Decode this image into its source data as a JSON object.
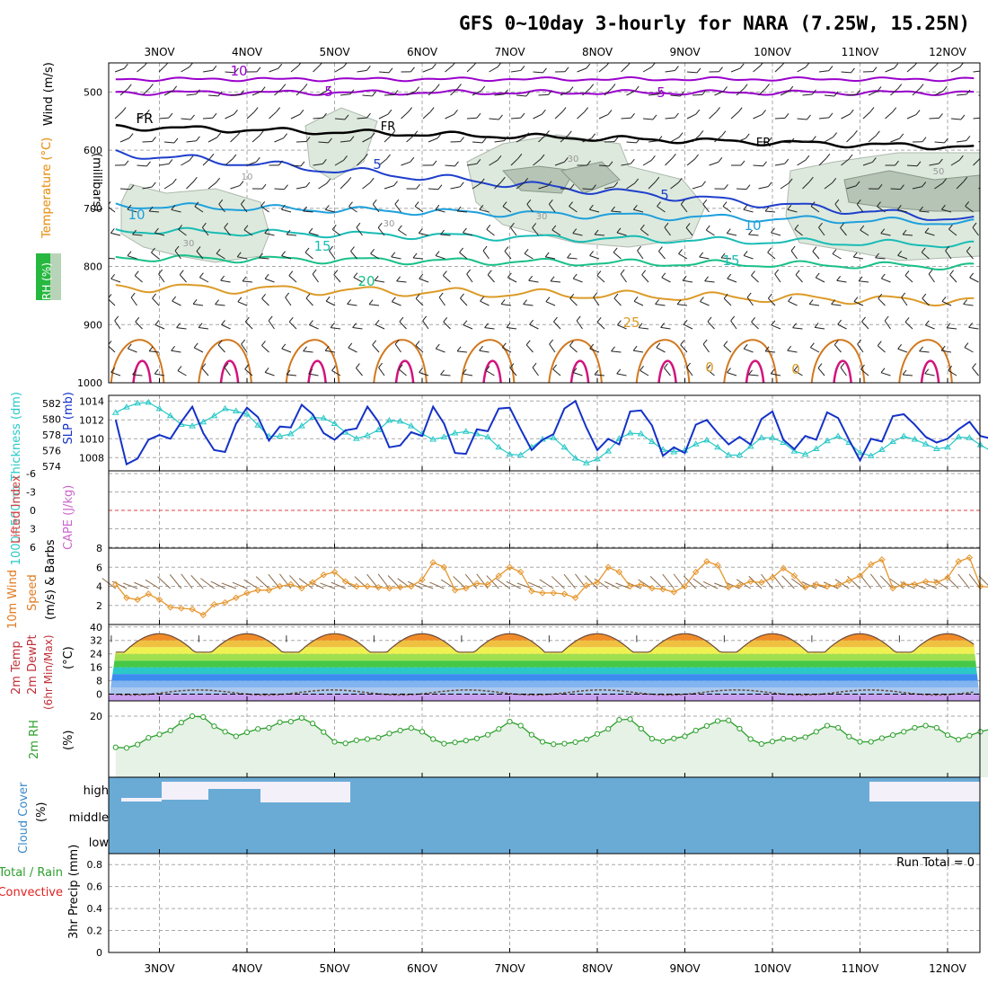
{
  "title": "GFS 0~10day 3-hourly for NARA (7.25W, 15.25N)",
  "colors": {
    "grid": "#a8a8a8",
    "frame": "#000000",
    "purple": "#9900cc",
    "blue": "#1e3fcc",
    "lightblue": "#1ea0dc",
    "teal": "#19bcb4",
    "green": "#19c08a",
    "orange": "#dc9b28",
    "dkorange": "#d2781e",
    "magenta": "#d2147d",
    "slp": "#1432c8",
    "thick": "#28c8c8",
    "wind10": "#e6962d",
    "rh2": "#2da02d",
    "rhfill": "#e6f2e6",
    "cloud": "#6aabd6",
    "cloudgap": "#f4f0fa"
  },
  "chart_data": [
    {
      "type": "line",
      "panel": "upper-air",
      "x": [
        "3NOV",
        "4NOV",
        "5NOV",
        "6NOV",
        "7NOV",
        "8NOV",
        "9NOV",
        "10NOV",
        "11NOV",
        "12NOV"
      ],
      "ylabel_parts": [
        "RH (%)",
        "Temperature (°C)",
        "Wind (m/s)"
      ],
      "yunit_label": "(millibars)",
      "yticks": [
        "500",
        "600",
        "700",
        "800",
        "900",
        "1000"
      ],
      "ylim": [
        450,
        1000
      ],
      "contour_labels": [
        "10",
        "5",
        "FR",
        "5",
        "10",
        "15",
        "20",
        "25",
        "0"
      ],
      "rh_labels": [
        "10",
        "30",
        "50"
      ]
    },
    {
      "type": "line",
      "panel": "slp-thickness",
      "ylabel_left": "1000-500mb Thickness (dm)",
      "ylabel_right": "SLP (mb)",
      "yticks_left": [
        "582",
        "580",
        "578",
        "576",
        "574"
      ],
      "yticks_right": [
        "1014",
        "1012",
        "1010",
        "1008"
      ],
      "series": [
        {
          "name": "SLP (mb)",
          "values": [
            1012.0,
            1007.3,
            1007.9,
            1009.9,
            1010.4,
            1010.0,
            1011.8,
            1013.4,
            1010.6,
            1008.8,
            1008.6,
            1011.6,
            1013.3,
            1012.3,
            1009.8,
            1011.3,
            1011.2,
            1013.6,
            1012.6,
            1010.6,
            1009.9,
            1010.9,
            1011.1,
            1013.4,
            1011.8,
            1009.1,
            1009.3,
            1010.7,
            1010.3,
            1013.4,
            1011.6,
            1008.5,
            1008.4,
            1011.0,
            1010.8,
            1013.2,
            1013.3,
            1011.0,
            1008.8,
            1009.9,
            1010.5,
            1013.2,
            1014.0,
            1011.2,
            1008.8,
            1010.0,
            1009.4,
            1012.9,
            1013.0,
            1011.4,
            1008.2,
            1009.1,
            1008.5,
            1011.5,
            1012.0,
            1010.6,
            1009.4,
            1010.2,
            1009.4,
            1012.1,
            1012.9,
            1009.9,
            1008.9,
            1010.3,
            1009.9,
            1012.8,
            1012.2,
            1009.9,
            1007.7,
            1010.0,
            1009.7,
            1012.4,
            1012.6,
            1011.5,
            1010.2,
            1009.6,
            1010.0,
            1011.0,
            1011.8,
            1010.3,
            1010.0,
            1011.3
          ]
        },
        {
          "name": "1000-500mb Thickness (dm)",
          "values": [
            580.8,
            581.5,
            582.0,
            582.1,
            581.3,
            580.4,
            579.3,
            579.1,
            579.6,
            580.4,
            581.3,
            581.0,
            580.6,
            579.2,
            577.8,
            577.8,
            578.1,
            579.1,
            580.2,
            580.1,
            579.4,
            578.3,
            577.5,
            577.9,
            578.6,
            579.8,
            579.7,
            579.1,
            578.1,
            577.4,
            577.7,
            578.2,
            578.4,
            578.1,
            577.7,
            576.4,
            575.5,
            575.4,
            576.4,
            577.4,
            577.6,
            576.4,
            575.0,
            574.4,
            574.9,
            575.9,
            577.5,
            578.2,
            578.1,
            577.1,
            576.1,
            575.8,
            576.0,
            576.8,
            577.3,
            576.4,
            575.4,
            575.4,
            576.5,
            577.6,
            577.6,
            577.0,
            575.9,
            575.5,
            576.2,
            577.2,
            577.8,
            577.0,
            575.7,
            575.3,
            576.1,
            577.1,
            577.8,
            577.4,
            576.8,
            576.2,
            576.4,
            577.7,
            577.6,
            576.7,
            575.9,
            575.6
          ]
        }
      ]
    },
    {
      "type": "line",
      "panel": "stability",
      "ylabel_left": "Lifted Index",
      "ylabel_right": "CAPE (J/kg)",
      "yticks": [
        "-6",
        "-3",
        "0",
        "3",
        "6"
      ]
    },
    {
      "type": "line",
      "panel": "wind10m",
      "ylabel": "10m Wind Speed (m/s) & Barbs",
      "yticks": [
        "8",
        "6",
        "4",
        "2"
      ],
      "ylim": [
        0,
        8
      ],
      "series": [
        {
          "name": "10m Wind Speed (m/s)",
          "values": [
            4.2,
            2.8,
            2.6,
            3.2,
            2.6,
            1.8,
            1.7,
            1.6,
            1.0,
            2.1,
            2.3,
            2.8,
            3.3,
            3.6,
            3.6,
            4.0,
            4.2,
            3.8,
            4.4,
            5.2,
            5.5,
            4.5,
            4.0,
            4.0,
            3.9,
            3.8,
            3.9,
            4.0,
            4.7,
            6.5,
            6.0,
            3.6,
            3.8,
            4.3,
            4.2,
            5.1,
            6.0,
            5.5,
            3.5,
            3.3,
            3.3,
            3.2,
            2.8,
            4.1,
            4.4,
            6.0,
            5.5,
            4.0,
            4.2,
            3.8,
            3.7,
            3.4,
            4.0,
            5.5,
            6.6,
            6.2,
            3.9,
            4.1,
            4.5,
            4.4,
            4.9,
            5.9,
            5.1,
            3.9,
            4.2,
            4.0,
            4.1,
            4.6,
            5.1,
            6.3,
            6.8,
            3.8,
            4.2,
            4.2,
            4.5,
            4.4,
            4.9,
            6.6,
            7.0,
            4.0,
            3.9,
            4.6
          ]
        }
      ]
    },
    {
      "type": "area",
      "panel": "temp2m",
      "ylabel": "2m Temp 2m DewPt (6hr Min/Max) (°C)",
      "yticks": [
        "40",
        "32",
        "24",
        "16",
        "8",
        "0"
      ],
      "ylim": [
        -4,
        40
      ],
      "temp_max": 36,
      "temp_min": 25,
      "dewpoint": 0
    },
    {
      "type": "area",
      "panel": "rh2m",
      "ylabel": "2m RH (%)",
      "yticks": [
        "20"
      ],
      "ylim": [
        0,
        25
      ],
      "series": [
        {
          "name": "2m RH (%)",
          "values": [
            9.8,
            9.6,
            10.7,
            12.9,
            14.0,
            15.3,
            17.9,
            20.0,
            19.7,
            16.7,
            14.9,
            13.4,
            14.7,
            15.8,
            16.2,
            18.0,
            18.2,
            19.4,
            17.6,
            14.8,
            11.6,
            11.1,
            12.1,
            12.5,
            12.9,
            14.3,
            15.3,
            16.1,
            14.9,
            12.5,
            11.0,
            11.4,
            12.0,
            12.7,
            13.9,
            15.8,
            18.2,
            16.9,
            13.9,
            11.6,
            10.8,
            11.0,
            11.5,
            12.4,
            14.2,
            15.8,
            18.8,
            19.0,
            15.9,
            12.6,
            11.8,
            12.7,
            13.4,
            15.3,
            16.8,
            18.4,
            18.6,
            15.9,
            12.5,
            10.9,
            11.7,
            12.6,
            12.6,
            13.1,
            14.9,
            16.9,
            16.2,
            13.3,
            11.6,
            11.6,
            12.8,
            13.8,
            14.9,
            16.2,
            16.9,
            16.2,
            13.8,
            12.3,
            13.6,
            14.9,
            15.8,
            17.2
          ]
        }
      ]
    },
    {
      "type": "area",
      "panel": "cloud",
      "ylabel": "Cloud Cover (%)",
      "categories": [
        "high",
        "middle",
        "low"
      ],
      "high_cloud_x_days": [
        2.5,
        5.3,
        11.0,
        12.3
      ]
    },
    {
      "type": "bar",
      "panel": "precip",
      "ylabel": "3hr Precip (mm)",
      "left_labels": [
        "Total / Rain",
        "Convective"
      ],
      "run_total": "Run Total = 0",
      "yticks": [
        "0.8",
        "0.6",
        "0.4",
        "0.2",
        "0"
      ],
      "ylim": [
        0,
        0.9
      ],
      "values": []
    }
  ],
  "labels": {
    "rh": "RH (%)",
    "temperature": "Temperature (°C)",
    "wind": "Wind (m/s)",
    "millibars": "(millibars)",
    "thickness": "1000~500mb Thickness (dm)",
    "slp": "SLP (mb)",
    "lifted": "Lifted Index",
    "cape": "CAPE (J/kg)",
    "wind10_a": "10m Wind",
    "wind10_b": "Speed",
    "wind10_c": "(m/s) & Barbs",
    "temp_a": "2m Temp",
    "temp_b": "2m DewPt",
    "temp_c": "(6hr Min/Max)",
    "temp_unit": "(°C)",
    "rh2_a": "2m RH",
    "rh2_b": "(%)",
    "cloud_a": "Cloud Cover",
    "cloud_b": "(%)",
    "precip_a": "Total / Rain",
    "precip_b": "Convective",
    "precip_c": "3hr Precip (mm)"
  }
}
